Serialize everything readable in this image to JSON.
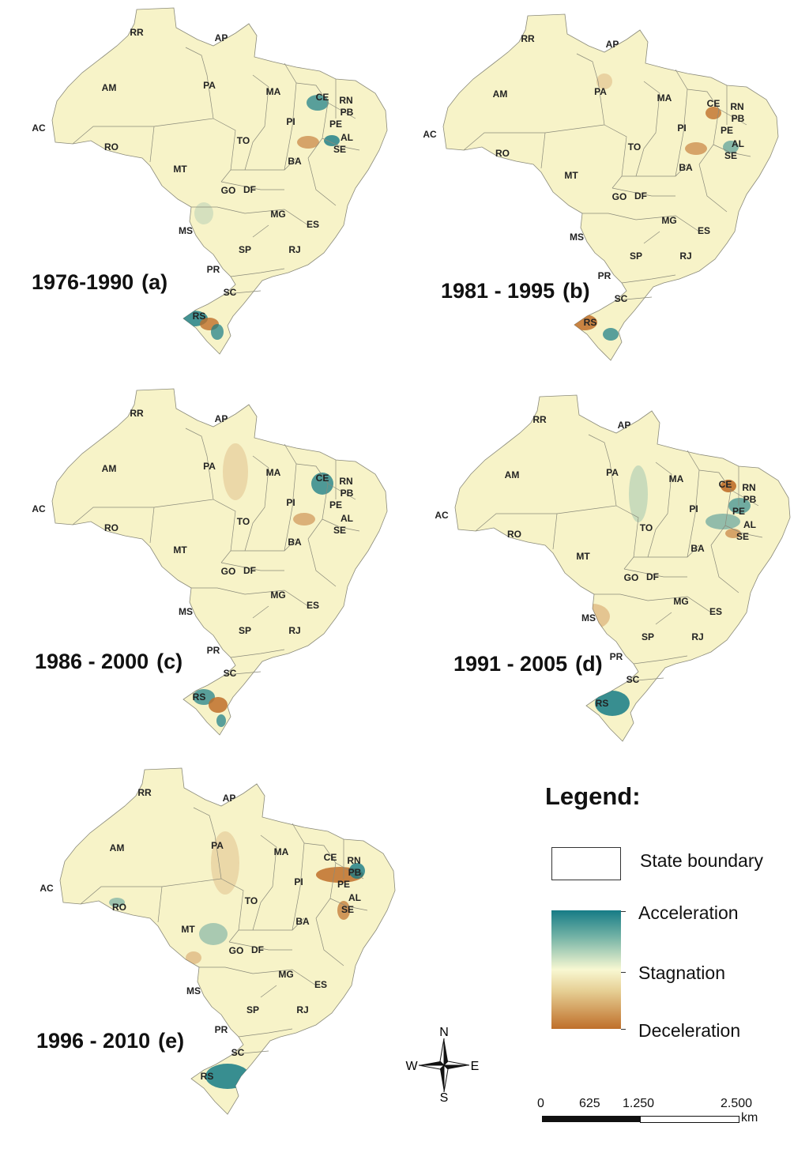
{
  "map_panels": [
    {
      "period": "1976-1990",
      "letter": "(a)"
    },
    {
      "period": "1981 - 1995",
      "letter": "(b)"
    },
    {
      "period": "1986 - 2000",
      "letter": "(c)"
    },
    {
      "period": "1991 - 2005",
      "letter": "(d)"
    },
    {
      "period": "1996 - 2010",
      "letter": "(e)"
    }
  ],
  "state_labels": [
    "RR",
    "AP",
    "AM",
    "PA",
    "MA",
    "CE",
    "RN",
    "PB",
    "PE",
    "AL",
    "SE",
    "PI",
    "AC",
    "RO",
    "TO",
    "BA",
    "MT",
    "GO",
    "DF",
    "MG",
    "ES",
    "MS",
    "SP",
    "RJ",
    "PR",
    "SC",
    "RS"
  ],
  "legend": {
    "title": "Legend:",
    "state_boundary": "State boundary",
    "acceleration": "Acceleration",
    "stagnation": "Stagnation",
    "deceleration": "Deceleration"
  },
  "colors": {
    "land": "#f7f3c8",
    "acceleration": "#167b86",
    "stagnation": "#f8f8d2",
    "deceleration": "#bf6f2a",
    "border": "#8a8a7a"
  },
  "compass": {
    "n": "N",
    "s": "S",
    "e": "E",
    "w": "W"
  },
  "scale": {
    "ticks": [
      "0",
      "625",
      "1.250",
      "2.500"
    ],
    "unit": "km"
  }
}
